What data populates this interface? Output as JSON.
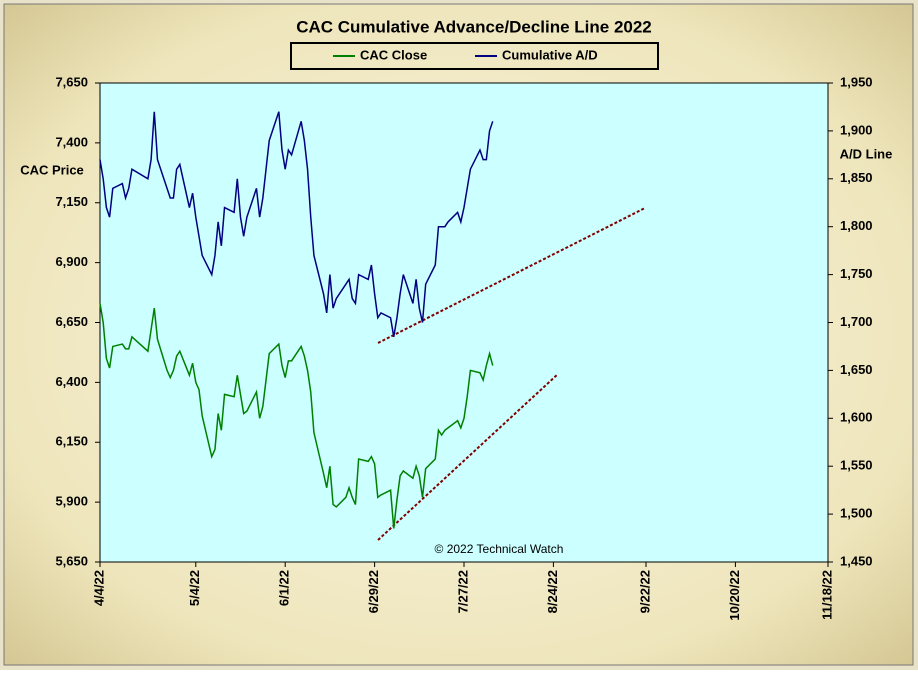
{
  "chart_data": {
    "type": "line",
    "title": "CAC Cumulative Advance/Decline Line 2022",
    "ylabel": "CAC Price",
    "y2label": "A/D Line",
    "annotation": "© 2022 Technical Watch",
    "x": [
      "4/4/22",
      "4/5/22",
      "4/6/22",
      "4/7/22",
      "4/8/22",
      "4/11/22",
      "4/12/22",
      "4/13/22",
      "4/14/22",
      "4/19/22",
      "4/20/22",
      "4/21/22",
      "4/22/22",
      "4/25/22",
      "4/26/22",
      "4/27/22",
      "4/28/22",
      "4/29/22",
      "5/2/22",
      "5/3/22",
      "5/4/22",
      "5/5/22",
      "5/6/22",
      "5/9/22",
      "5/10/22",
      "5/11/22",
      "5/12/22",
      "5/13/22",
      "5/16/22",
      "5/17/22",
      "5/18/22",
      "5/19/22",
      "5/20/22",
      "5/23/22",
      "5/24/22",
      "5/25/22",
      "5/26/22",
      "5/27/22",
      "5/30/22",
      "5/31/22",
      "6/1/22",
      "6/2/22",
      "6/3/22",
      "6/6/22",
      "6/7/22",
      "6/8/22",
      "6/9/22",
      "6/10/22",
      "6/13/22",
      "6/14/22",
      "6/15/22",
      "6/16/22",
      "6/17/22",
      "6/20/22",
      "6/21/22",
      "6/22/22",
      "6/23/22",
      "6/24/22",
      "6/27/22",
      "6/28/22",
      "6/29/22",
      "6/30/22",
      "7/1/22",
      "7/4/22",
      "7/5/22",
      "7/6/22",
      "7/7/22",
      "7/8/22",
      "7/11/22",
      "7/12/22",
      "7/13/22",
      "7/14/22",
      "7/15/22",
      "7/18/22",
      "7/19/22",
      "7/20/22",
      "7/21/22",
      "7/22/22",
      "7/25/22",
      "7/26/22",
      "7/27/22",
      "7/28/22",
      "7/29/22",
      "8/1/22",
      "8/2/22",
      "8/3/22",
      "8/4/22",
      "8/5/22"
    ],
    "series": [
      {
        "name": "CAC Close",
        "color": "#008000",
        "values": [
          6730,
          6650,
          6500,
          6460,
          6550,
          6560,
          6540,
          6540,
          6590,
          6530,
          6620,
          6710,
          6580,
          6450,
          6420,
          6450,
          6510,
          6530,
          6430,
          6480,
          6400,
          6370,
          6260,
          6090,
          6120,
          6270,
          6200,
          6350,
          6340,
          6430,
          6350,
          6270,
          6280,
          6360,
          6250,
          6300,
          6410,
          6520,
          6560,
          6470,
          6420,
          6490,
          6490,
          6550,
          6510,
          6450,
          6360,
          6190,
          6020,
          5960,
          6050,
          5890,
          5880,
          5920,
          5960,
          5920,
          5890,
          6080,
          6070,
          6090,
          6060,
          5920,
          5930,
          5950,
          5790,
          5910,
          6010,
          6030,
          6000,
          6050,
          6010,
          5920,
          6040,
          6080,
          6200,
          6180,
          6200,
          6210,
          6240,
          6210,
          6250,
          6340,
          6450,
          6440,
          6410,
          6470,
          6520,
          6470
        ]
      },
      {
        "name": "Cumulative A/D",
        "color": "#000080",
        "axis": "y2",
        "values": [
          1870,
          1850,
          1820,
          1810,
          1840,
          1845,
          1830,
          1840,
          1860,
          1850,
          1870,
          1920,
          1870,
          1840,
          1830,
          1830,
          1860,
          1865,
          1820,
          1835,
          1810,
          1790,
          1770,
          1750,
          1770,
          1805,
          1780,
          1820,
          1815,
          1850,
          1810,
          1790,
          1810,
          1840,
          1810,
          1830,
          1860,
          1890,
          1920,
          1880,
          1860,
          1880,
          1875,
          1910,
          1890,
          1860,
          1810,
          1770,
          1730,
          1710,
          1750,
          1715,
          1725,
          1740,
          1745,
          1725,
          1720,
          1750,
          1745,
          1760,
          1730,
          1705,
          1710,
          1705,
          1685,
          1705,
          1730,
          1750,
          1720,
          1745,
          1715,
          1700,
          1740,
          1760,
          1800,
          1800,
          1800,
          1805,
          1815,
          1805,
          1820,
          1840,
          1860,
          1880,
          1870,
          1870,
          1900,
          1910
        ]
      }
    ],
    "xlim": [
      "4/4/22",
      "11/18/22"
    ],
    "xticks": [
      "4/4/22",
      "5/4/22",
      "6/1/22",
      "6/29/22",
      "7/27/22",
      "8/24/22",
      "9/22/22",
      "10/20/22",
      "11/18/22"
    ],
    "ylim": [
      5650,
      7650
    ],
    "yticks": [
      {
        "value": 5650,
        "label": "5,650"
      },
      {
        "value": 5900,
        "label": "5,900"
      },
      {
        "value": 6150,
        "label": "6,150"
      },
      {
        "value": 6400,
        "label": "6,400"
      },
      {
        "value": 6650,
        "label": "6,650"
      },
      {
        "value": 6900,
        "label": "6,900"
      },
      {
        "value": 7150,
        "label": "7,150"
      },
      {
        "value": 7400,
        "label": "7,400"
      },
      {
        "value": 7650,
        "label": "7,650"
      }
    ],
    "y2lim": [
      1450,
      1950
    ],
    "y2ticks": [
      {
        "value": 1450,
        "label": "1,450"
      },
      {
        "value": 1500,
        "label": "1,500"
      },
      {
        "value": 1550,
        "label": "1,550"
      },
      {
        "value": 1600,
        "label": "1,600"
      },
      {
        "value": 1650,
        "label": "1,650"
      },
      {
        "value": 1700,
        "label": "1,700"
      },
      {
        "value": 1750,
        "label": "1,750"
      },
      {
        "value": 1800,
        "label": "1,800"
      },
      {
        "value": 1850,
        "label": "1,850"
      },
      {
        "value": 1900,
        "label": "1,900"
      },
      {
        "value": 1950,
        "label": "1,950"
      }
    ],
    "plot_background": "#ccffff"
  }
}
